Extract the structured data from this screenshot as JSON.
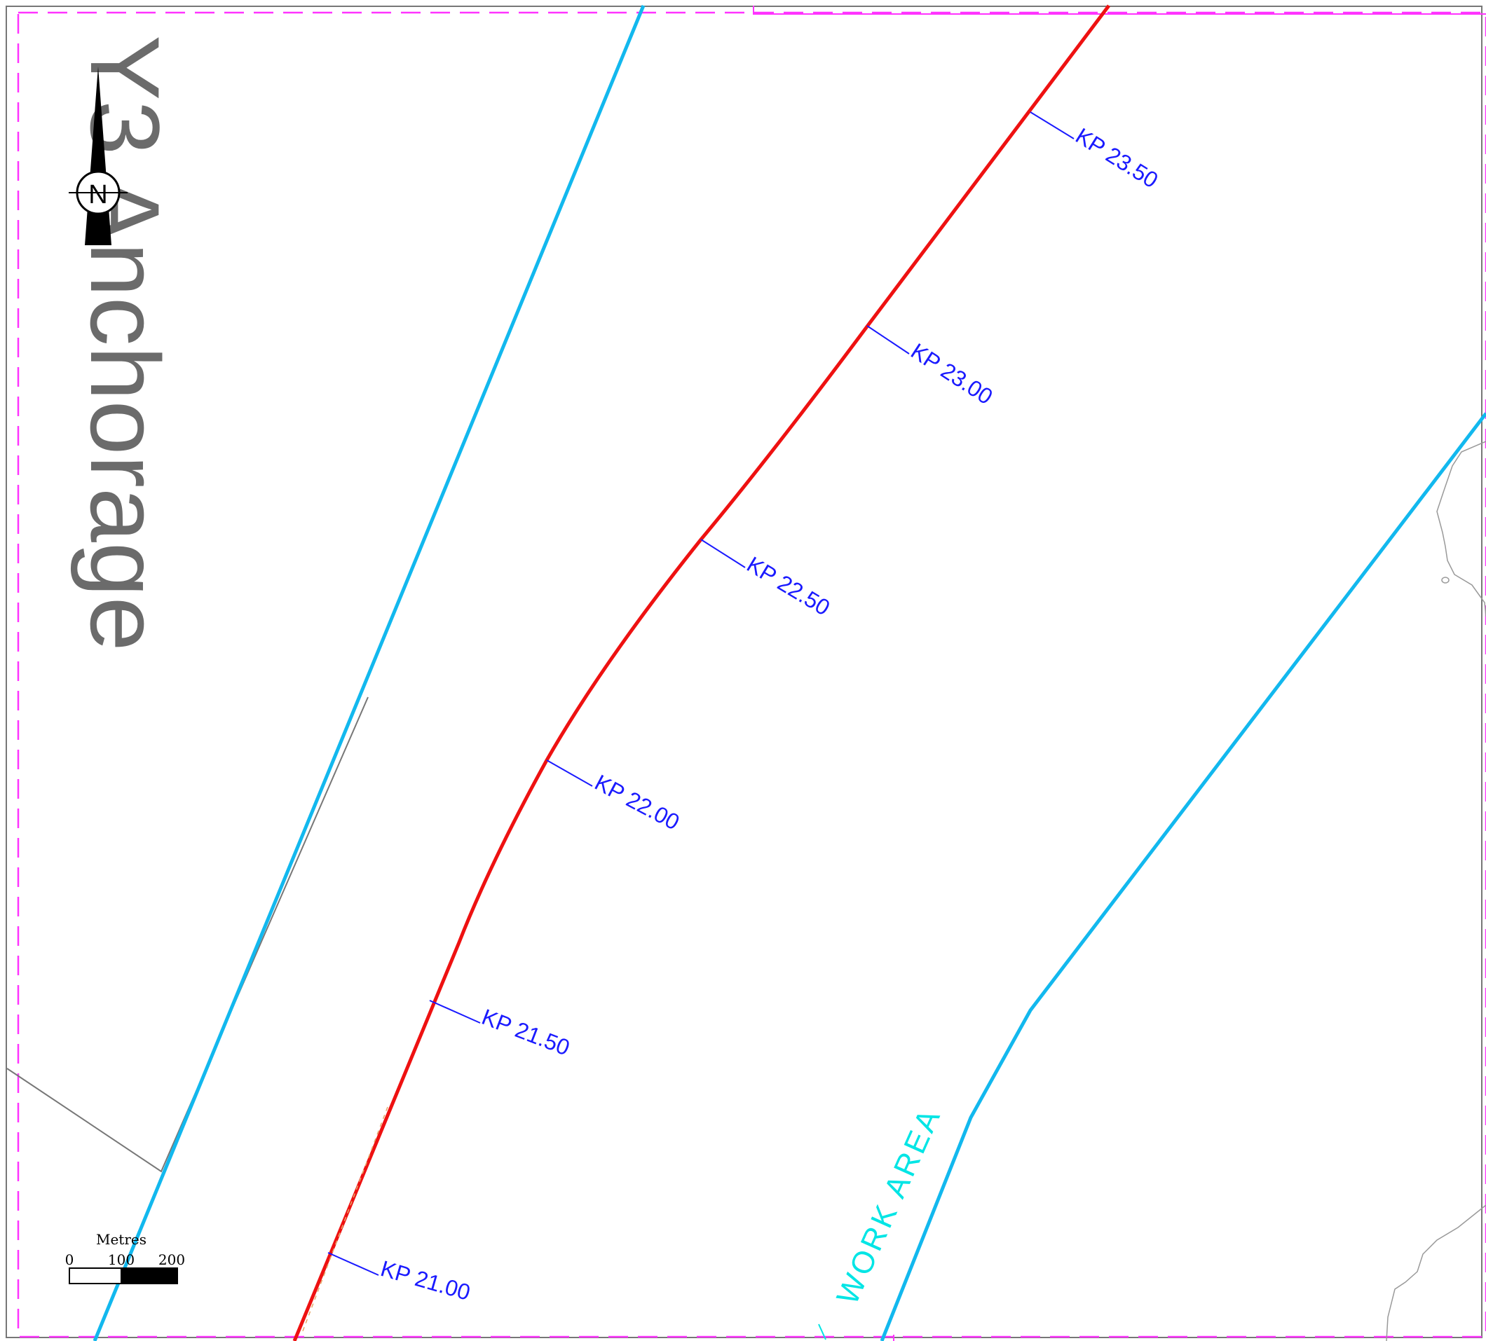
{
  "map": {
    "title": "Y3 Anchorage",
    "work_area_label": "WORK AREA",
    "north_letter": "N",
    "colors": {
      "route": "#ee1111",
      "corridor": "#12b8ee",
      "kp_marker": "#1a1aff",
      "frame": "#ff33ff",
      "work_area": "#00e5e5",
      "coastline": "#888888"
    },
    "kp_labels": [
      {
        "text": "KP 21.00"
      },
      {
        "text": "KP 21.50"
      },
      {
        "text": "KP 22.00"
      },
      {
        "text": "KP 22.50"
      },
      {
        "text": "KP 23.00"
      },
      {
        "text": "KP 23.50"
      }
    ],
    "scale_bar": {
      "unit": "Metres",
      "ticks": [
        "0",
        "100",
        "200"
      ]
    }
  }
}
